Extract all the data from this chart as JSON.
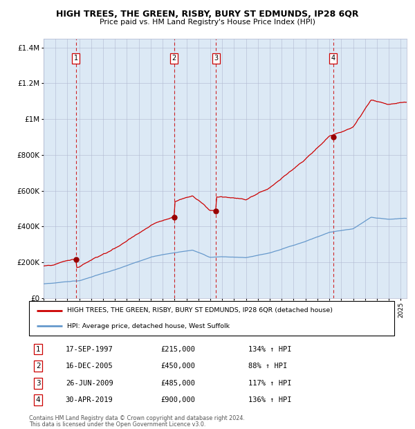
{
  "title": "HIGH TREES, THE GREEN, RISBY, BURY ST EDMUNDS, IP28 6QR",
  "subtitle": "Price paid vs. HM Land Registry's House Price Index (HPI)",
  "background_color": "#dce9f5",
  "plot_bg_color": "#dce9f5",
  "sale_times": [
    1997.72,
    2005.96,
    2009.49,
    2019.33
  ],
  "sale_prices": [
    215000,
    450000,
    485000,
    900000
  ],
  "sale_labels": [
    "1",
    "2",
    "3",
    "4"
  ],
  "line_color_red": "#cc0000",
  "line_color_blue": "#6699cc",
  "vline_color_red": "#cc0000",
  "legend_line1": "HIGH TREES, THE GREEN, RISBY, BURY ST EDMUNDS, IP28 6QR (detached house)",
  "legend_line2": "HPI: Average price, detached house, West Suffolk",
  "footer1": "Contains HM Land Registry data © Crown copyright and database right 2024.",
  "footer2": "This data is licensed under the Open Government Licence v3.0.",
  "ylim": [
    0,
    1450000
  ],
  "yticks": [
    0,
    200000,
    400000,
    600000,
    800000,
    1000000,
    1200000,
    1400000
  ],
  "ytick_labels": [
    "£0",
    "£200K",
    "£400K",
    "£600K",
    "£800K",
    "£1M",
    "£1.2M",
    "£1.4M"
  ],
  "table_data": [
    [
      "1",
      "17-SEP-1997",
      "£215,000",
      "134% ↑ HPI"
    ],
    [
      "2",
      "16-DEC-2005",
      "£450,000",
      "88% ↑ HPI"
    ],
    [
      "3",
      "26-JUN-2009",
      "£485,000",
      "117% ↑ HPI"
    ],
    [
      "4",
      "30-APR-2019",
      "£900,000",
      "136% ↑ HPI"
    ]
  ]
}
